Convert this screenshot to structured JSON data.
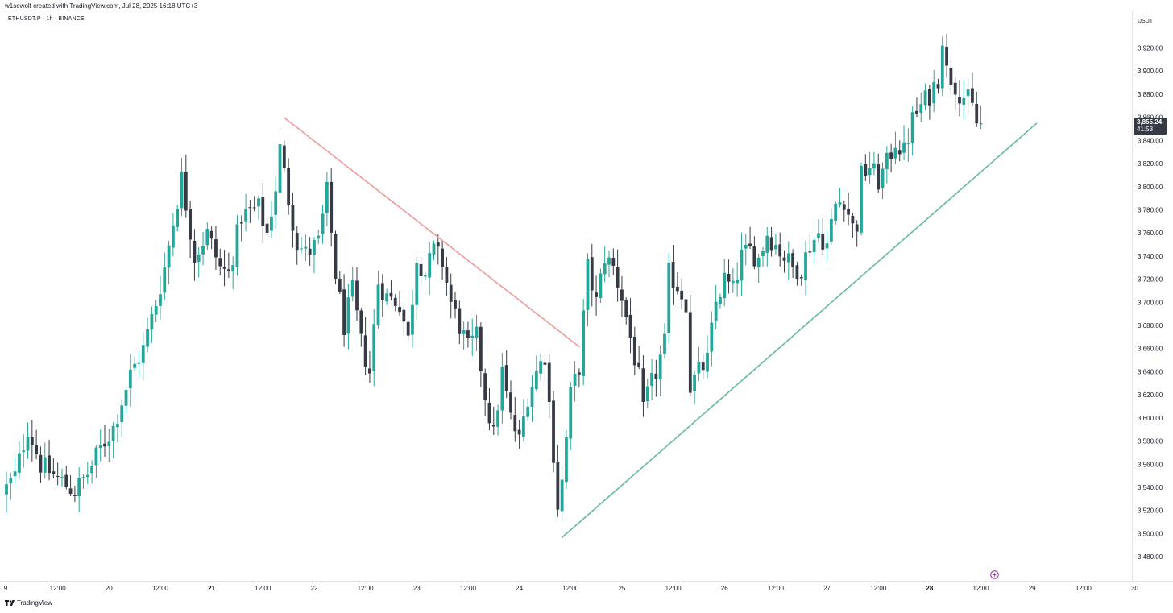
{
  "header": {
    "credit": "w1sewolf created with TradingView.com, Jul 28, 2025 16:18 UTC+3",
    "symbol": "ETHUSDT.P · 1h · BINANCE",
    "currency": "USDT"
  },
  "footer": {
    "brand": "TradingView"
  },
  "colors": {
    "up": "#26a69a",
    "down": "#363a45",
    "trend_down": "#ef9a9a",
    "trend_up": "#66bb9a",
    "last_price_bg": "#363a45"
  },
  "chart_data": {
    "type": "candlestick",
    "timeframe": "1h",
    "ylim": [
      3460,
      3945
    ],
    "y_ticks": [
      3480,
      3500,
      3520,
      3540,
      3560,
      3580,
      3600,
      3620,
      3640,
      3660,
      3680,
      3700,
      3720,
      3740,
      3760,
      3780,
      3800,
      3820,
      3840,
      3860,
      3880,
      3900,
      3920
    ],
    "y_tick_labels": [
      "3,480.00",
      "3,500.00",
      "3,520.00",
      "3,540.00",
      "3,560.00",
      "3,580.00",
      "3,600.00",
      "3,620.00",
      "3,640.00",
      "3,660.00",
      "3,680.00",
      "3,700.00",
      "3,720.00",
      "3,740.00",
      "3,760.00",
      "3,780.00",
      "3,800.00",
      "3,820.00",
      "3,840.00",
      "3,860.00",
      "3,880.00",
      "3,900.00",
      "3,920.00"
    ],
    "x_ticks": [
      {
        "label": "9",
        "bar": -0.2,
        "bold": false
      },
      {
        "label": "12:00",
        "bar": 12,
        "bold": false
      },
      {
        "label": "20",
        "bar": 24,
        "bold": false
      },
      {
        "label": "12:00",
        "bar": 36,
        "bold": false
      },
      {
        "label": "21",
        "bar": 48,
        "bold": true
      },
      {
        "label": "12:00",
        "bar": 60,
        "bold": false
      },
      {
        "label": "22",
        "bar": 72,
        "bold": false
      },
      {
        "label": "12:00",
        "bar": 84,
        "bold": false
      },
      {
        "label": "23",
        "bar": 96,
        "bold": false
      },
      {
        "label": "12:00",
        "bar": 108,
        "bold": false
      },
      {
        "label": "24",
        "bar": 120,
        "bold": false
      },
      {
        "label": "12:00",
        "bar": 132,
        "bold": false
      },
      {
        "label": "25",
        "bar": 144,
        "bold": false
      },
      {
        "label": "12:00",
        "bar": 156,
        "bold": false
      },
      {
        "label": "26",
        "bar": 168,
        "bold": false
      },
      {
        "label": "12:00",
        "bar": 180,
        "bold": false
      },
      {
        "label": "27",
        "bar": 192,
        "bold": false
      },
      {
        "label": "12:00",
        "bar": 204,
        "bold": false
      },
      {
        "label": "28",
        "bar": 216,
        "bold": true
      },
      {
        "label": "12:00",
        "bar": 228,
        "bold": false
      },
      {
        "label": "29",
        "bar": 240,
        "bold": false
      },
      {
        "label": "12:00",
        "bar": 252,
        "bold": false
      },
      {
        "label": "30",
        "bar": 264,
        "bold": false
      }
    ],
    "bars_visible": 265,
    "last_price": {
      "value": 3855.24,
      "label": "3,855.24",
      "countdown": "41:53"
    },
    "trendlines": [
      {
        "name": "descending-resistance",
        "from": [
          65,
          3860
        ],
        "to": [
          134,
          3662
        ],
        "color": "#ef9a9a"
      },
      {
        "name": "ascending-support",
        "from": [
          130,
          3497
        ],
        "to": [
          241,
          3855
        ],
        "color": "#66bb9a"
      }
    ],
    "path": [
      [
        0,
        3535
      ],
      [
        3,
        3550
      ],
      [
        6,
        3592
      ],
      [
        9,
        3560
      ],
      [
        13,
        3548
      ],
      [
        17,
        3537
      ],
      [
        20,
        3552
      ],
      [
        23,
        3574
      ],
      [
        26,
        3592
      ],
      [
        30,
        3638
      ],
      [
        33,
        3660
      ],
      [
        36,
        3700
      ],
      [
        38,
        3730
      ],
      [
        40,
        3770
      ],
      [
        42,
        3808
      ],
      [
        45,
        3740
      ],
      [
        48,
        3760
      ],
      [
        51,
        3730
      ],
      [
        53,
        3725
      ],
      [
        56,
        3775
      ],
      [
        60,
        3782
      ],
      [
        62,
        3760
      ],
      [
        64,
        3800
      ],
      [
        65,
        3833
      ],
      [
        67,
        3790
      ],
      [
        69,
        3752
      ],
      [
        71,
        3742
      ],
      [
        74,
        3752
      ],
      [
        76,
        3795
      ],
      [
        78,
        3725
      ],
      [
        80,
        3680
      ],
      [
        82,
        3710
      ],
      [
        84,
        3665
      ],
      [
        86,
        3640
      ],
      [
        88,
        3718
      ],
      [
        90,
        3705
      ],
      [
        93,
        3700
      ],
      [
        95,
        3668
      ],
      [
        97,
        3740
      ],
      [
        99,
        3725
      ],
      [
        101,
        3745
      ],
      [
        103,
        3735
      ],
      [
        105,
        3700
      ],
      [
        107,
        3680
      ],
      [
        109,
        3660
      ],
      [
        111,
        3670
      ],
      [
        113,
        3620
      ],
      [
        115,
        3585
      ],
      [
        117,
        3640
      ],
      [
        119,
        3600
      ],
      [
        121,
        3580
      ],
      [
        123,
        3620
      ],
      [
        125,
        3640
      ],
      [
        127,
        3655
      ],
      [
        129,
        3570
      ],
      [
        130,
        3525
      ],
      [
        131,
        3545
      ],
      [
        133,
        3620
      ],
      [
        135,
        3645
      ],
      [
        137,
        3730
      ],
      [
        139,
        3700
      ],
      [
        141,
        3740
      ],
      [
        143,
        3730
      ],
      [
        145,
        3705
      ],
      [
        147,
        3670
      ],
      [
        149,
        3635
      ],
      [
        150,
        3605
      ],
      [
        151,
        3620
      ],
      [
        153,
        3640
      ],
      [
        155,
        3665
      ],
      [
        156,
        3725
      ],
      [
        158,
        3715
      ],
      [
        160,
        3700
      ],
      [
        161,
        3628
      ],
      [
        163,
        3640
      ],
      [
        165,
        3650
      ],
      [
        167,
        3700
      ],
      [
        169,
        3720
      ],
      [
        171,
        3710
      ],
      [
        173,
        3740
      ],
      [
        175,
        3745
      ],
      [
        177,
        3738
      ],
      [
        179,
        3760
      ],
      [
        181,
        3750
      ],
      [
        183,
        3740
      ],
      [
        185,
        3730
      ],
      [
        187,
        3730
      ],
      [
        189,
        3750
      ],
      [
        191,
        3760
      ],
      [
        193,
        3750
      ],
      [
        195,
        3785
      ],
      [
        197,
        3790
      ],
      [
        199,
        3765
      ],
      [
        200,
        3768
      ],
      [
        201,
        3810
      ],
      [
        203,
        3818
      ],
      [
        205,
        3805
      ],
      [
        207,
        3820
      ],
      [
        209,
        3840
      ],
      [
        211,
        3830
      ],
      [
        213,
        3858
      ],
      [
        215,
        3870
      ],
      [
        217,
        3880
      ],
      [
        219,
        3895
      ],
      [
        220,
        3930
      ],
      [
        221,
        3900
      ],
      [
        222,
        3895
      ],
      [
        224,
        3882
      ],
      [
        226,
        3875
      ],
      [
        227,
        3868
      ],
      [
        228,
        3855
      ]
    ]
  }
}
